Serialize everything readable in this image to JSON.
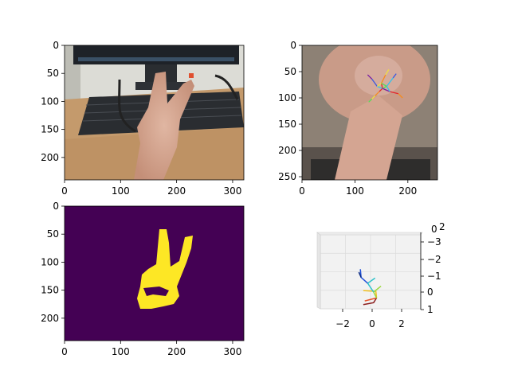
{
  "chart_data": [
    {
      "type": "image",
      "subplot": "rgb-photo",
      "xlim": [
        0,
        320
      ],
      "ylim": [
        240,
        0
      ],
      "xticks": [
        "0",
        "100",
        "200",
        "300"
      ],
      "yticks": [
        "0",
        "50",
        "100",
        "150",
        "200"
      ],
      "colors": {
        "wall": "#dcdcd6",
        "desk": "#c49a6c",
        "monitor": "#1e2228",
        "keyboard": "#2a2d31",
        "skin": "#d9a58c"
      }
    },
    {
      "type": "image",
      "subplot": "hand-crop-with-2d-keypoints",
      "xlim": [
        0,
        256
      ],
      "ylim": [
        256,
        0
      ],
      "xticks": [
        "0",
        "100",
        "200"
      ],
      "yticks": [
        "0",
        "50",
        "100",
        "150",
        "200",
        "250"
      ],
      "keypoints": [
        {
          "x": 152,
          "y": 82
        },
        {
          "x": 146,
          "y": 88
        },
        {
          "x": 138,
          "y": 96
        },
        {
          "x": 132,
          "y": 102
        },
        {
          "x": 126,
          "y": 108
        },
        {
          "x": 142,
          "y": 78
        },
        {
          "x": 132,
          "y": 64
        },
        {
          "x": 124,
          "y": 56
        },
        {
          "x": 150,
          "y": 72
        },
        {
          "x": 158,
          "y": 56
        },
        {
          "x": 164,
          "y": 46
        },
        {
          "x": 160,
          "y": 78
        },
        {
          "x": 172,
          "y": 62
        },
        {
          "x": 178,
          "y": 54
        },
        {
          "x": 166,
          "y": 88
        },
        {
          "x": 182,
          "y": 92
        },
        {
          "x": 190,
          "y": 100
        }
      ],
      "bone_colors": [
        "#e3262e",
        "#f58c1f",
        "#f0e040",
        "#55dd55",
        "#36c2ec",
        "#3b58e0",
        "#7a1fa3"
      ]
    },
    {
      "type": "heatmap",
      "subplot": "hand-mask",
      "xlim": [
        0,
        320
      ],
      "ylim": [
        240,
        0
      ],
      "xticks": [
        "0",
        "100",
        "200",
        "300"
      ],
      "yticks": [
        "0",
        "50",
        "100",
        "150",
        "200"
      ],
      "colors": {
        "background": "#440154",
        "foreground": "#fde725"
      }
    },
    {
      "type": "line3d",
      "subplot": "3d-skeleton",
      "xticks": [
        "−2",
        "0",
        "2"
      ],
      "yticks": [
        "−3",
        "−2",
        "−1",
        "0",
        "1"
      ],
      "zticks": [
        "2",
        "0"
      ],
      "colors": {
        "pane": "#f2f2f2",
        "grid": "#dcdcdc"
      },
      "bones": [
        {
          "color": "#8b1e1e",
          "points": [
            [
              -0.6,
              0.85
            ],
            [
              0.1,
              0.72
            ],
            [
              0.3,
              0.4
            ]
          ]
        },
        {
          "color": "#e8532a",
          "points": [
            [
              0.3,
              0.4
            ],
            [
              -0.5,
              0.6
            ]
          ]
        },
        {
          "color": "#f0c020",
          "points": [
            [
              0.3,
              0.4
            ],
            [
              0.25,
              -0.05
            ],
            [
              -0.6,
              -0.1
            ]
          ]
        },
        {
          "color": "#9ad93e",
          "points": [
            [
              0.3,
              0.4
            ],
            [
              0.1,
              0.0
            ],
            [
              0.6,
              -0.4
            ]
          ]
        },
        {
          "color": "#2dc2c9",
          "points": [
            [
              0.1,
              0.0
            ],
            [
              -0.3,
              -0.6
            ],
            [
              0.2,
              -0.95
            ]
          ]
        },
        {
          "color": "#2050d8",
          "points": [
            [
              -0.3,
              -0.6
            ],
            [
              -0.75,
              -1.0
            ],
            [
              -0.8,
              -1.55
            ]
          ]
        },
        {
          "color": "#0b2a80",
          "points": [
            [
              -0.75,
              -1.0
            ],
            [
              -0.9,
              -1.35
            ]
          ]
        }
      ]
    }
  ]
}
